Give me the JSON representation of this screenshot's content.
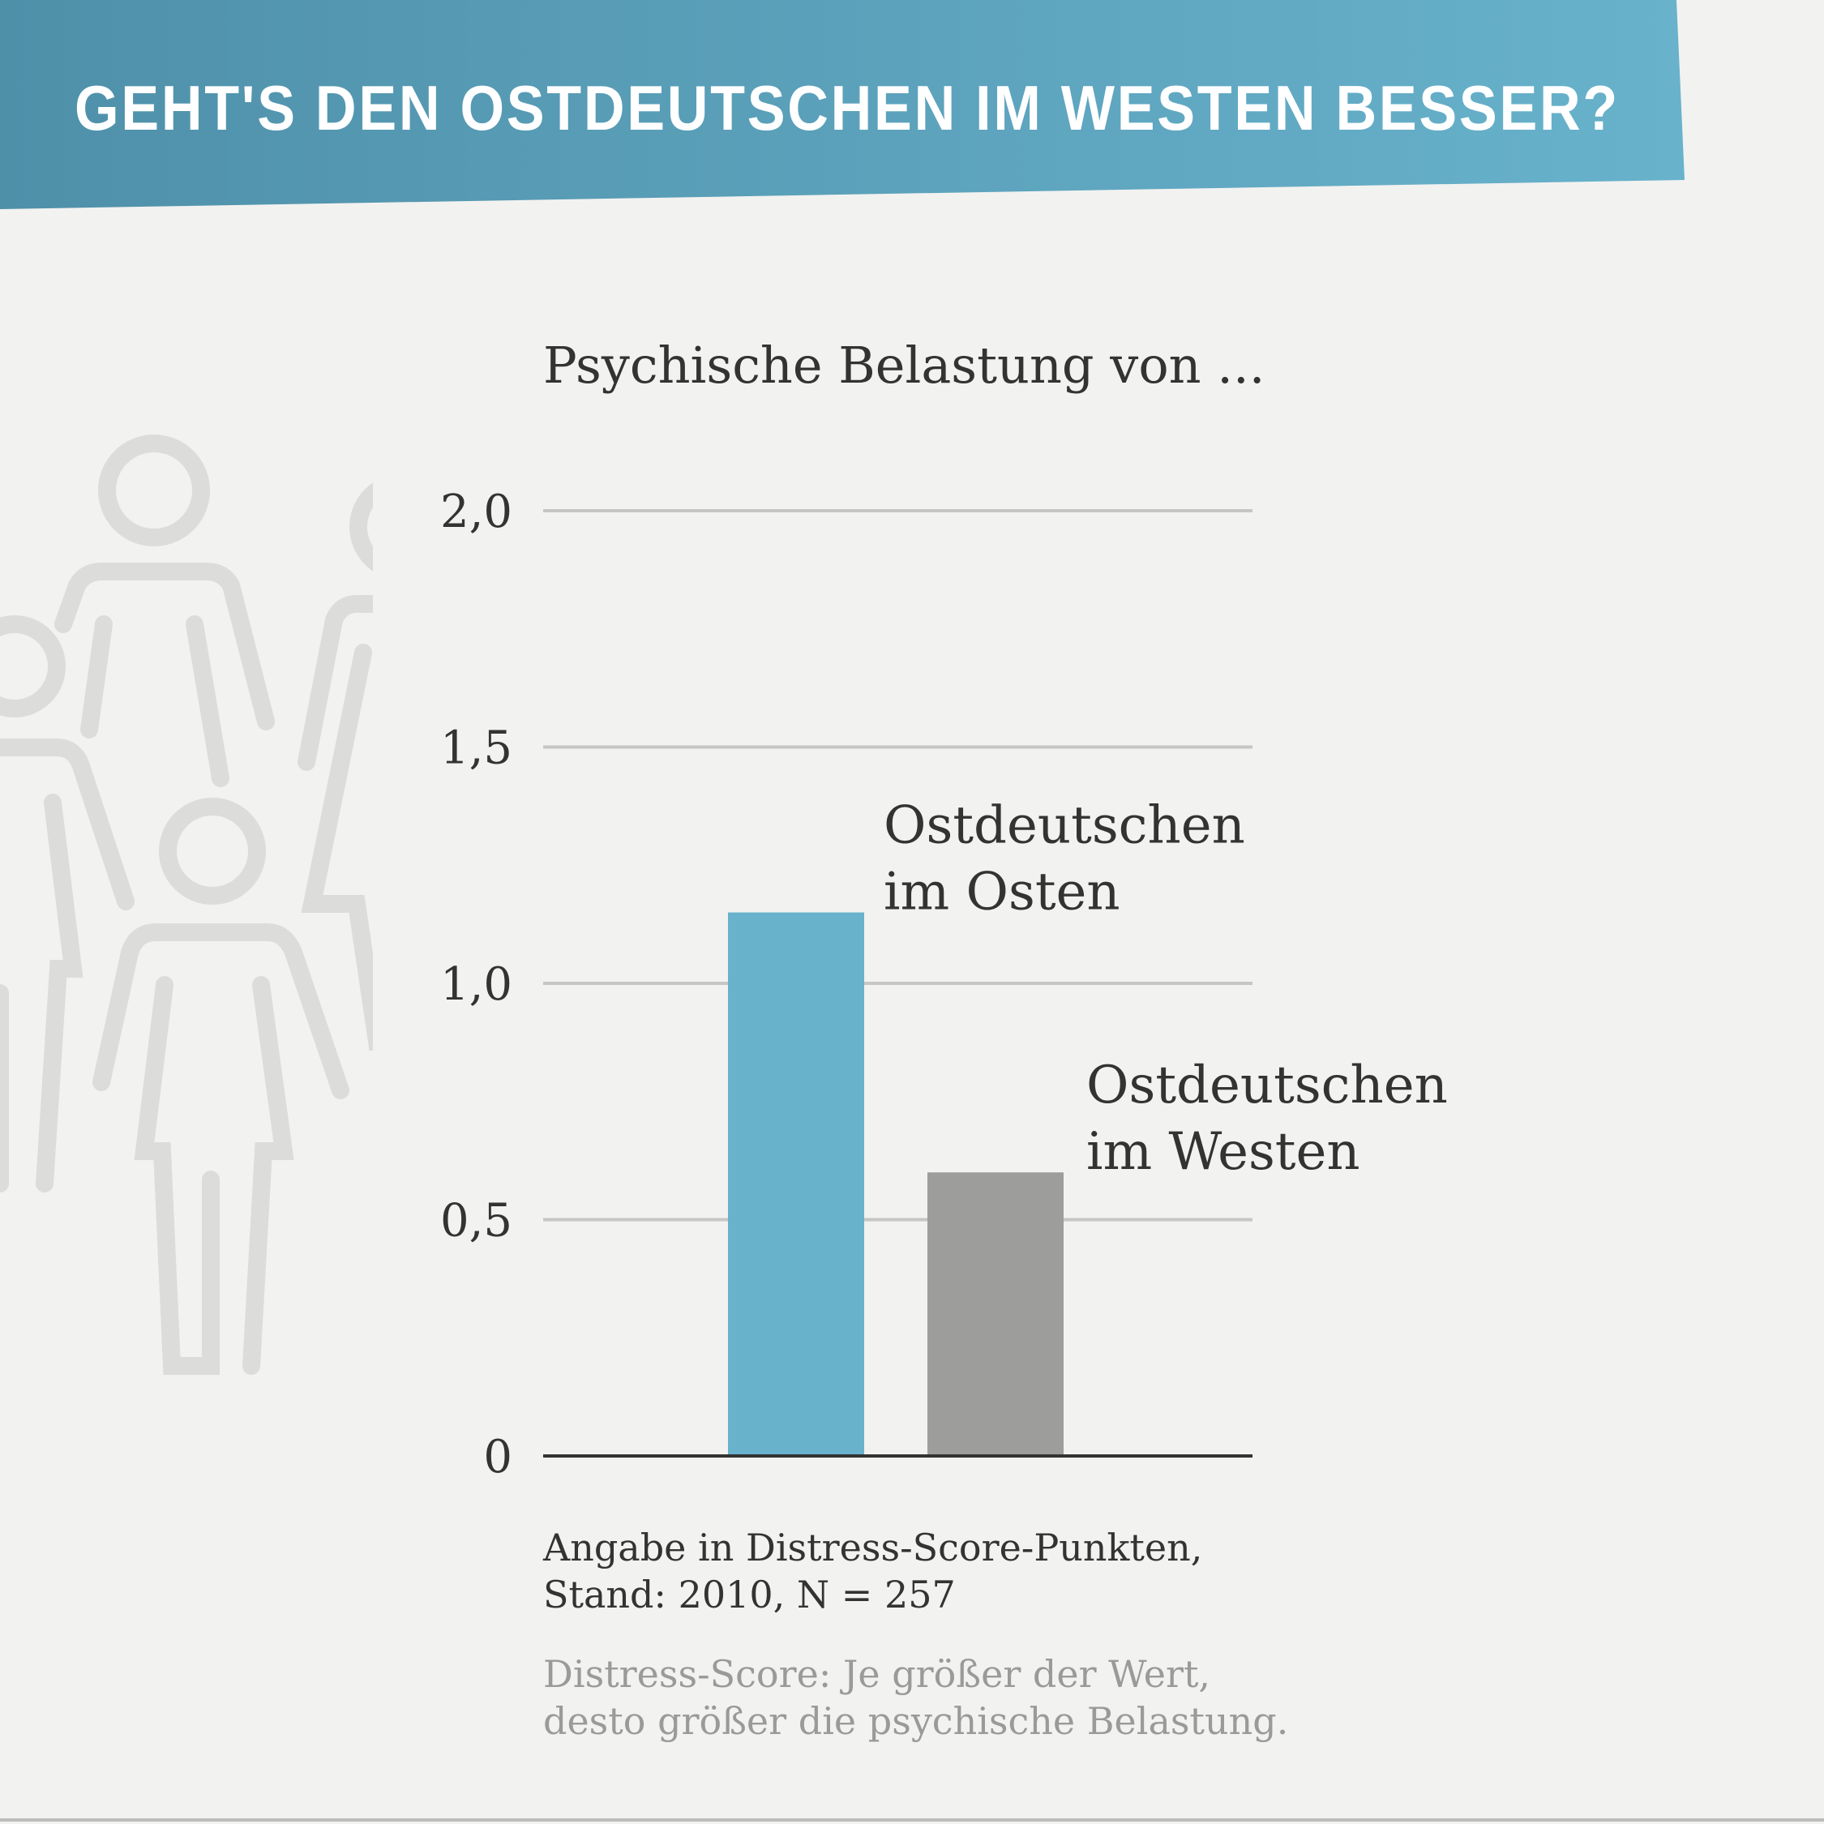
{
  "banner": {
    "title": "GEHT'S DEN OSTDEUTSCHEN IM WESTEN BESSER?",
    "color_left": "#4f90a9",
    "color_right": "#68b2cc"
  },
  "decor": {
    "people-icon": "people-outline-icon",
    "color": "#dcdcdb"
  },
  "chart_data": {
    "type": "bar",
    "title": "Psychische Belastung von ...",
    "categories": [
      "Ostdeutschen im Osten",
      "Ostdeutschen im Westen"
    ],
    "category_lines": [
      [
        "Ostdeutschen",
        "im Osten"
      ],
      [
        "Ostdeutschen",
        "im Westen"
      ]
    ],
    "values": [
      1.15,
      0.6
    ],
    "colors": [
      "#68b2cc",
      "#9d9d9c"
    ],
    "yticks": [
      {
        "value": 0,
        "label": "0"
      },
      {
        "value": 0.5,
        "label": "0,5"
      },
      {
        "value": 1.0,
        "label": "1,0"
      },
      {
        "value": 1.5,
        "label": "1,5"
      },
      {
        "value": 2.0,
        "label": "2,0"
      }
    ],
    "ylim": [
      0,
      2.0
    ],
    "grid": true,
    "legend": "none"
  },
  "notes": {
    "unit_line1": "Angabe in Distress-Score-Punkten,",
    "unit_line2": "Stand: 2010, N = 257",
    "def_line1": "Distress-Score: Je größer der Wert,",
    "def_line2": "desto größer die psychische Belastung."
  }
}
